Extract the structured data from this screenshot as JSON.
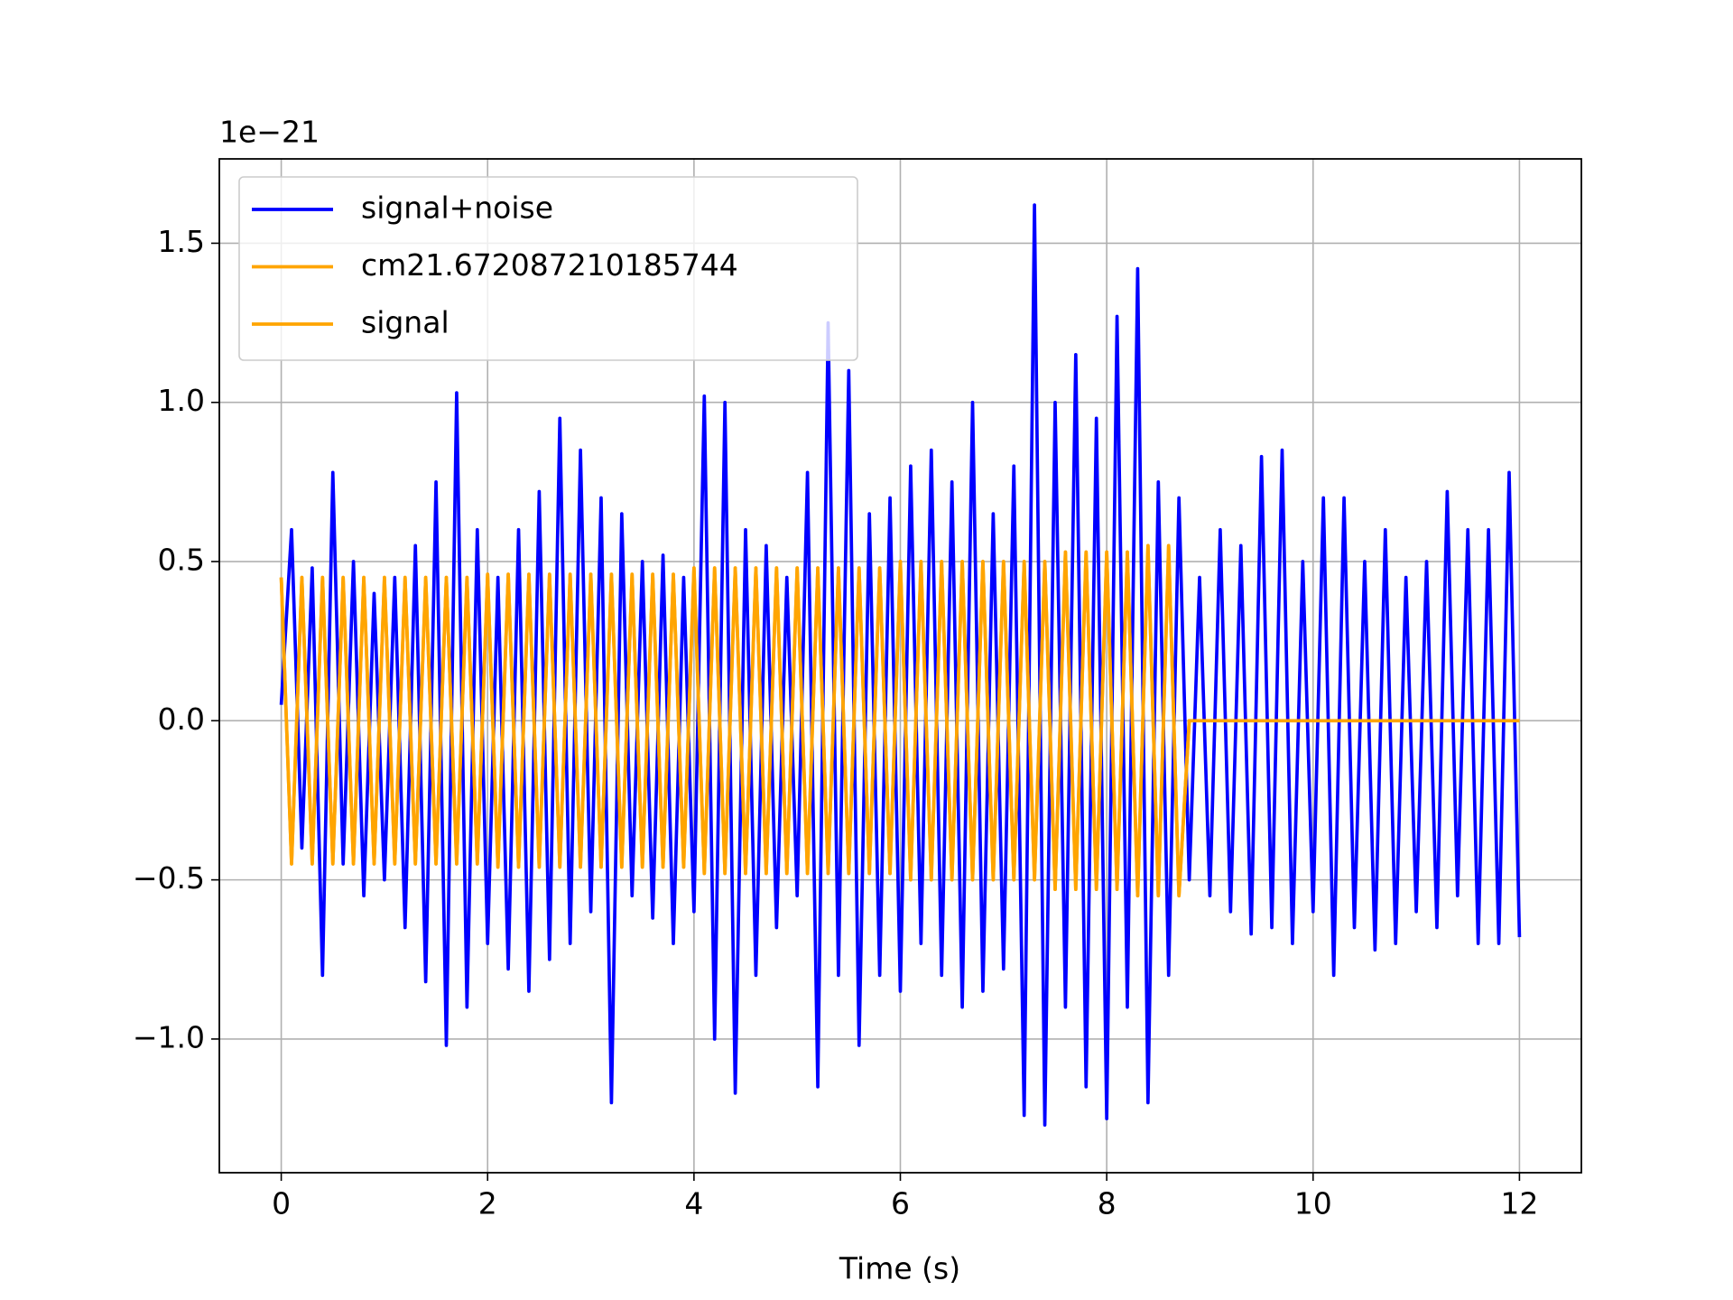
{
  "chart_data": {
    "type": "line",
    "x_label": "Time (s)",
    "y_offset_label": "1e−21",
    "legend": "upper left",
    "grid": true,
    "xlim": [
      -0.6,
      12.6
    ],
    "ylim": [
      -1.42,
      1.765
    ],
    "xticks": [
      0,
      2,
      4,
      6,
      8,
      10,
      12
    ],
    "yticks": [
      {
        "value": -1,
        "label": "−1.0"
      },
      {
        "value": -0.5,
        "label": "−0.5"
      },
      {
        "value": 0,
        "label": "0.0"
      },
      0.5,
      {
        "value": 1,
        "label": "1.0"
      },
      1.5
    ],
    "x": [
      0,
      0.1,
      0.2,
      0.3,
      0.4,
      0.5,
      0.6,
      0.7,
      0.8,
      0.9,
      1,
      1.1,
      1.2,
      1.3,
      1.4,
      1.5,
      1.6,
      1.7,
      1.8,
      1.9,
      2,
      2.1,
      2.2,
      2.3,
      2.4,
      2.5,
      2.6,
      2.7,
      2.8,
      2.9,
      3,
      3.1,
      3.2,
      3.3,
      3.4,
      3.5,
      3.6,
      3.7,
      3.8,
      3.9,
      4,
      4.1,
      4.2,
      4.3,
      4.4,
      4.5,
      4.6,
      4.7,
      4.8,
      4.9,
      5,
      5.1,
      5.2,
      5.3,
      5.4,
      5.5,
      5.6,
      5.7,
      5.8,
      5.9,
      6,
      6.1,
      6.2,
      6.3,
      6.4,
      6.5,
      6.6,
      6.7,
      6.8,
      6.9,
      7,
      7.1,
      7.2,
      7.3,
      7.4,
      7.5,
      7.6,
      7.7,
      7.8,
      7.9,
      8,
      8.1,
      8.2,
      8.3,
      8.4,
      8.5,
      8.6,
      8.7,
      8.8,
      8.9,
      9,
      9.1,
      9.2,
      9.3,
      9.4,
      9.5,
      9.6,
      9.7,
      9.8,
      9.9,
      10,
      10.1,
      10.2,
      10.3,
      10.4,
      10.5,
      10.6,
      10.7,
      10.8,
      10.9,
      11,
      11.1,
      11.2,
      11.3,
      11.4,
      11.5,
      11.6,
      11.7,
      11.8,
      11.9,
      12
    ],
    "series": [
      {
        "name": "signal+noise",
        "color": "#0000ff",
        "values": [
          0.05,
          0.6,
          -0.4,
          0.48,
          -0.8,
          0.78,
          -0.45,
          0.5,
          -0.55,
          0.4,
          -0.5,
          0.45,
          -0.65,
          0.55,
          -0.82,
          0.75,
          -1.02,
          1.03,
          -0.9,
          0.6,
          -0.7,
          0.45,
          -0.78,
          0.6,
          -0.85,
          0.72,
          -0.75,
          0.95,
          -0.7,
          0.85,
          -0.6,
          0.7,
          -1.2,
          0.65,
          -0.55,
          0.5,
          -0.62,
          0.52,
          -0.7,
          0.45,
          -0.6,
          1.02,
          -1.0,
          1.0,
          -1.17,
          0.6,
          -0.8,
          0.55,
          -0.65,
          0.45,
          -0.55,
          0.78,
          -1.15,
          1.25,
          -0.8,
          1.1,
          -1.02,
          0.65,
          -0.8,
          0.7,
          -0.85,
          0.8,
          -0.7,
          0.85,
          -0.8,
          0.75,
          -0.9,
          1.0,
          -0.85,
          0.65,
          -0.78,
          0.8,
          -1.24,
          1.62,
          -1.27,
          1.0,
          -0.9,
          1.15,
          -1.15,
          0.95,
          -1.25,
          1.27,
          -0.9,
          1.42,
          -1.2,
          0.75,
          -0.8,
          0.7,
          -0.5,
          0.45,
          -0.55,
          0.6,
          -0.6,
          0.55,
          -0.67,
          0.83,
          -0.65,
          0.85,
          -0.7,
          0.5,
          -0.6,
          0.7,
          -0.8,
          0.7,
          -0.65,
          0.5,
          -0.72,
          0.6,
          -0.7,
          0.45,
          -0.6,
          0.5,
          -0.65,
          0.72,
          -0.55,
          0.6,
          -0.7,
          0.6,
          -0.7,
          0.78,
          -0.68
        ]
      },
      {
        "name": "cm21.672087210185744",
        "color": "#ffa500",
        "values": [
          0.45,
          -0.45,
          0.45,
          -0.45,
          0.45,
          -0.45,
          0.45,
          -0.45,
          0.45,
          -0.45,
          0.45,
          -0.45,
          0.45,
          -0.45,
          0.45,
          -0.45,
          0.45,
          -0.45,
          0.45,
          -0.45,
          0.46,
          -0.46,
          0.46,
          -0.46,
          0.46,
          -0.46,
          0.46,
          -0.46,
          0.46,
          -0.46,
          0.46,
          -0.46,
          0.46,
          -0.46,
          0.46,
          -0.46,
          0.46,
          -0.46,
          0.46,
          -0.46,
          0.48,
          -0.48,
          0.48,
          -0.48,
          0.48,
          -0.48,
          0.48,
          -0.48,
          0.48,
          -0.48,
          0.48,
          -0.48,
          0.48,
          -0.48,
          0.48,
          -0.48,
          0.48,
          -0.48,
          0.48,
          -0.48,
          0.5,
          -0.5,
          0.5,
          -0.5,
          0.5,
          -0.5,
          0.5,
          -0.5,
          0.5,
          -0.5,
          0.5,
          -0.5,
          0.5,
          -0.5,
          0.5,
          -0.53,
          0.53,
          -0.53,
          0.53,
          -0.53,
          0.53,
          -0.53,
          0.53,
          -0.55,
          0.55,
          -0.55,
          0.55,
          -0.55,
          0,
          0,
          0,
          0,
          0,
          0,
          0,
          0,
          0,
          0,
          0,
          0,
          0,
          0,
          0,
          0,
          0,
          0,
          0,
          0,
          0,
          0,
          0,
          0,
          0,
          0,
          0,
          0,
          0,
          0,
          0,
          0,
          0
        ]
      },
      {
        "name": "signal",
        "color": "#ffa500",
        "values": [
          0.45,
          -0.45,
          0.45,
          -0.45,
          0.45,
          -0.45,
          0.45,
          -0.45,
          0.45,
          -0.45,
          0.45,
          -0.45,
          0.45,
          -0.45,
          0.45,
          -0.45,
          0.45,
          -0.45,
          0.45,
          -0.45,
          0.46,
          -0.46,
          0.46,
          -0.46,
          0.46,
          -0.46,
          0.46,
          -0.46,
          0.46,
          -0.46,
          0.46,
          -0.46,
          0.46,
          -0.46,
          0.46,
          -0.46,
          0.46,
          -0.46,
          0.46,
          -0.46,
          0.48,
          -0.48,
          0.48,
          -0.48,
          0.48,
          -0.48,
          0.48,
          -0.48,
          0.48,
          -0.48,
          0.48,
          -0.48,
          0.48,
          -0.48,
          0.48,
          -0.48,
          0.48,
          -0.48,
          0.48,
          -0.48,
          0.5,
          -0.5,
          0.5,
          -0.5,
          0.5,
          -0.5,
          0.5,
          -0.5,
          0.5,
          -0.5,
          0.5,
          -0.5,
          0.5,
          -0.5,
          0.5,
          -0.53,
          0.53,
          -0.53,
          0.53,
          -0.53,
          0.53,
          -0.53,
          0.53,
          -0.55,
          0.55,
          -0.55,
          0.55,
          -0.55,
          0,
          0,
          0,
          0,
          0,
          0,
          0,
          0,
          0,
          0,
          0,
          0,
          0,
          0,
          0,
          0,
          0,
          0,
          0,
          0,
          0,
          0,
          0,
          0,
          0,
          0,
          0,
          0,
          0,
          0,
          0,
          0,
          0
        ]
      }
    ]
  }
}
